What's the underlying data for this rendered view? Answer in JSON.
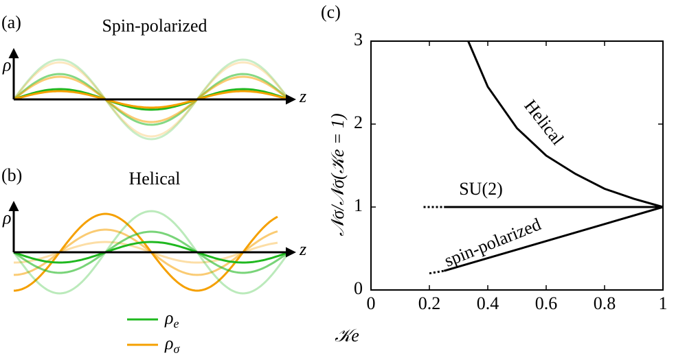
{
  "chart_data": [
    {
      "type": "schematic",
      "panel_label": "(a)",
      "title": "Spin-polarized",
      "y_label": "ρ",
      "x_label": "z"
    },
    {
      "type": "schematic",
      "panel_label": "(b)",
      "title": "Helical",
      "y_label": "ρ",
      "x_label": "z"
    },
    {
      "type": "line",
      "panel_label": "(c)",
      "x_label": "𝒦e",
      "y_label": "𝒩σ/𝒩σ(𝒦e = 1)",
      "xlim": [
        0,
        1
      ],
      "ylim": [
        0,
        3
      ],
      "xticks": [
        0,
        0.2,
        0.4,
        0.6,
        0.8,
        1
      ],
      "yticks": [
        0,
        1,
        2,
        3
      ],
      "series": [
        {
          "name": "Helical",
          "color": "#000000",
          "x": [
            0.333,
            0.4,
            0.5,
            0.6,
            0.7,
            0.8,
            0.9,
            1
          ],
          "values": [
            3,
            2.45,
            1.95,
            1.62,
            1.4,
            1.22,
            1.1,
            1
          ]
        },
        {
          "name": "SU(2)",
          "color": "#000000",
          "x": [
            0.25,
            1
          ],
          "values": [
            1,
            1
          ]
        },
        {
          "color": "#000000",
          "dash": "dotted",
          "x": [
            0.18,
            0.25
          ],
          "values": [
            1,
            1
          ]
        },
        {
          "name": "spin-polarized",
          "color": "#000000",
          "x": [
            0.25,
            1
          ],
          "values": [
            0.23,
            1
          ]
        },
        {
          "color": "#000000",
          "dash": "dotted",
          "x": [
            0.2,
            0.25
          ],
          "values": [
            0.2,
            0.23
          ]
        }
      ]
    }
  ],
  "legend": [
    {
      "symbol": "ρ",
      "subscript": "e",
      "color": "#1fb81f"
    },
    {
      "symbol": "ρ",
      "subscript": "σ",
      "color": "#f5a000"
    }
  ]
}
